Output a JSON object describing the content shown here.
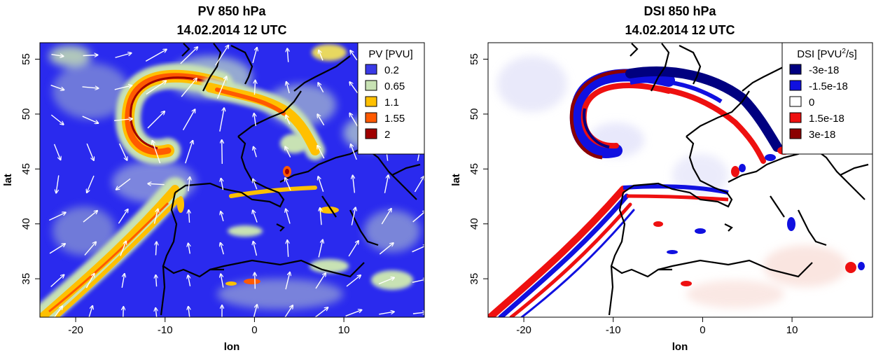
{
  "chart_data": [
    {
      "type": "heatmap",
      "title": "PV 850 hPa",
      "subtitle": "14.02.2014 12 UTC",
      "xlabel": "lon",
      "ylabel": "lat",
      "xlim": [
        -24,
        19
      ],
      "ylim": [
        31.5,
        56.5
      ],
      "xticks": [
        -20,
        -10,
        0,
        10
      ],
      "yticks": [
        35,
        40,
        45,
        50,
        55
      ],
      "legend": {
        "title": "PV [PVU]",
        "placement": "top-right",
        "entries": [
          {
            "label": "0.2",
            "color": "#3a3ae6"
          },
          {
            "label": "0.65",
            "color": "#c8e2b4"
          },
          {
            "label": "1.1",
            "color": "#ffc000"
          },
          {
            "label": "1.55",
            "color": "#ff5a00"
          },
          {
            "label": "2",
            "color": "#a00000"
          }
        ]
      },
      "overlay": "wind-vectors",
      "background_color": "#2828f0",
      "features": [
        {
          "type": "hook",
          "value": 1.55,
          "lon": [
            -15,
            -12
          ],
          "lat": [
            46,
            53
          ]
        },
        {
          "type": "band",
          "value": 1.1,
          "lon": [
            -22,
            -9
          ],
          "lat": [
            32,
            43
          ]
        },
        {
          "type": "streak",
          "value": 1.55,
          "lon": [
            -4,
            6
          ],
          "lat": [
            47,
            52
          ]
        }
      ]
    },
    {
      "type": "heatmap",
      "title": "DSI 850 hPa",
      "subtitle": "14.02.2014 12 UTC",
      "xlabel": "lon",
      "ylabel": "lat",
      "xlim": [
        -24,
        19
      ],
      "ylim": [
        31.5,
        56.5
      ],
      "xticks": [
        -20,
        -10,
        0,
        10
      ],
      "yticks": [
        35,
        40,
        45,
        50,
        55
      ],
      "legend": {
        "title_prefix": "DSI [PVU",
        "title_sup": "2",
        "title_suffix": "/s]",
        "placement": "top-right",
        "entries": [
          {
            "label": "-3e-18",
            "color": "#000080"
          },
          {
            "label": "-1.5e-18",
            "color": "#1010e0"
          },
          {
            "label": "0",
            "color": "#ffffff"
          },
          {
            "label": "1.5e-18",
            "color": "#ee1010"
          },
          {
            "label": "3e-18",
            "color": "#8b0000"
          }
        ]
      },
      "background_color": "#ffffff",
      "features": [
        {
          "type": "dipole-hook",
          "lon": [
            -15,
            -12
          ],
          "lat": [
            46,
            53
          ]
        },
        {
          "type": "dipole-band",
          "lon": [
            -22,
            -9
          ],
          "lat": [
            32,
            43
          ]
        }
      ]
    }
  ]
}
